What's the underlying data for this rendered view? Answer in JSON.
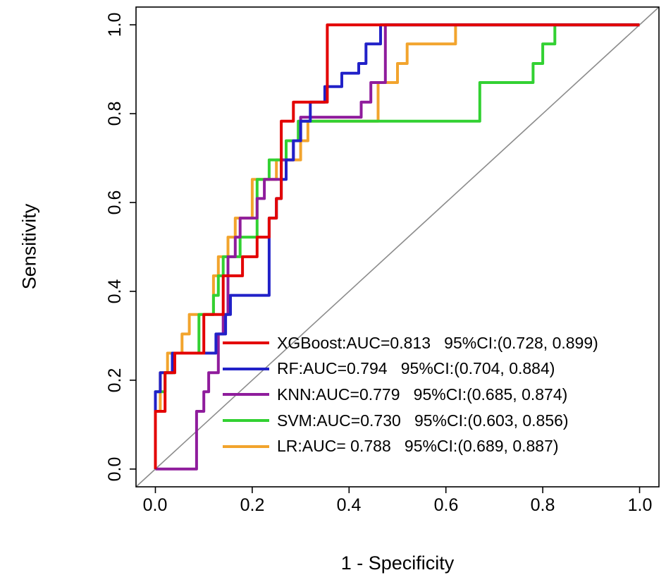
{
  "chart_data": {
    "type": "line",
    "subtype": "roc-curves",
    "title": "",
    "xlabel": "1 - Specificity",
    "ylabel": "Sensitivity",
    "xlim": [
      -0.04,
      1.04
    ],
    "ylim": [
      -0.04,
      1.04
    ],
    "ticks": [
      0,
      0.2,
      0.4,
      0.6,
      0.8,
      1.0
    ],
    "x_tick_labels": [
      "0.0",
      "0.2",
      "0.4",
      "0.6",
      "0.8",
      "1.0"
    ],
    "y_tick_labels": [
      "0.0",
      "0.2",
      "0.4",
      "0.6",
      "0.8",
      "1.0"
    ],
    "grid": false,
    "legend_position": "inside-lower-right",
    "reference_line": {
      "from": [
        0,
        0
      ],
      "to": [
        1,
        1
      ],
      "color": "#8c8c8c",
      "style": "solid"
    },
    "series": [
      {
        "name": "XGBoost",
        "auc": 0.813,
        "ci": "(0.728, 0.899)",
        "legend": "XGBoost:AUC=0.813   95%CI:(0.728, 0.899)",
        "color": "#e30000",
        "points": [
          [
            0,
            0
          ],
          [
            0,
            0.13
          ],
          [
            0.02,
            0.13
          ],
          [
            0.02,
            0.217
          ],
          [
            0.04,
            0.217
          ],
          [
            0.04,
            0.261
          ],
          [
            0.1,
            0.261
          ],
          [
            0.1,
            0.348
          ],
          [
            0.14,
            0.348
          ],
          [
            0.14,
            0.435
          ],
          [
            0.18,
            0.435
          ],
          [
            0.18,
            0.478
          ],
          [
            0.21,
            0.478
          ],
          [
            0.21,
            0.522
          ],
          [
            0.235,
            0.522
          ],
          [
            0.235,
            0.565
          ],
          [
            0.25,
            0.565
          ],
          [
            0.25,
            0.609
          ],
          [
            0.26,
            0.609
          ],
          [
            0.26,
            0.783
          ],
          [
            0.285,
            0.783
          ],
          [
            0.285,
            0.826
          ],
          [
            0.355,
            0.826
          ],
          [
            0.355,
            1.0
          ],
          [
            1.0,
            1.0
          ]
        ]
      },
      {
        "name": "RF",
        "auc": 0.794,
        "ci": "(0.704, 0.884)",
        "legend": "RF:AUC=0.794   95%CI:(0.704, 0.884)",
        "color": "#2121c8",
        "points": [
          [
            0,
            0
          ],
          [
            0,
            0.174
          ],
          [
            0.01,
            0.174
          ],
          [
            0.01,
            0.217
          ],
          [
            0.035,
            0.217
          ],
          [
            0.035,
            0.261
          ],
          [
            0.125,
            0.261
          ],
          [
            0.125,
            0.304
          ],
          [
            0.145,
            0.304
          ],
          [
            0.145,
            0.348
          ],
          [
            0.155,
            0.348
          ],
          [
            0.155,
            0.391
          ],
          [
            0.235,
            0.391
          ],
          [
            0.235,
            0.565
          ],
          [
            0.25,
            0.565
          ],
          [
            0.25,
            0.609
          ],
          [
            0.26,
            0.609
          ],
          [
            0.26,
            0.652
          ],
          [
            0.27,
            0.652
          ],
          [
            0.27,
            0.696
          ],
          [
            0.285,
            0.696
          ],
          [
            0.285,
            0.739
          ],
          [
            0.3,
            0.739
          ],
          [
            0.3,
            0.783
          ],
          [
            0.32,
            0.783
          ],
          [
            0.32,
            0.826
          ],
          [
            0.35,
            0.826
          ],
          [
            0.35,
            0.861
          ],
          [
            0.385,
            0.861
          ],
          [
            0.385,
            0.891
          ],
          [
            0.42,
            0.891
          ],
          [
            0.42,
            0.913
          ],
          [
            0.435,
            0.913
          ],
          [
            0.435,
            0.957
          ],
          [
            0.465,
            0.957
          ],
          [
            0.465,
            1.0
          ],
          [
            1.0,
            1.0
          ]
        ]
      },
      {
        "name": "KNN",
        "auc": 0.779,
        "ci": "(0.685, 0.874)",
        "legend": "KNN:AUC=0.779   95%CI:(0.685, 0.874)",
        "color": "#8f1c9c",
        "points": [
          [
            0,
            0
          ],
          [
            0.085,
            0
          ],
          [
            0.085,
            0.13
          ],
          [
            0.1,
            0.13
          ],
          [
            0.1,
            0.174
          ],
          [
            0.11,
            0.174
          ],
          [
            0.11,
            0.217
          ],
          [
            0.13,
            0.217
          ],
          [
            0.13,
            0.304
          ],
          [
            0.14,
            0.304
          ],
          [
            0.14,
            0.348
          ],
          [
            0.15,
            0.348
          ],
          [
            0.15,
            0.478
          ],
          [
            0.165,
            0.478
          ],
          [
            0.165,
            0.522
          ],
          [
            0.175,
            0.522
          ],
          [
            0.175,
            0.565
          ],
          [
            0.21,
            0.565
          ],
          [
            0.21,
            0.609
          ],
          [
            0.225,
            0.609
          ],
          [
            0.225,
            0.652
          ],
          [
            0.26,
            0.652
          ],
          [
            0.26,
            0.696
          ],
          [
            0.285,
            0.696
          ],
          [
            0.285,
            0.739
          ],
          [
            0.3,
            0.739
          ],
          [
            0.3,
            0.792
          ],
          [
            0.425,
            0.792
          ],
          [
            0.425,
            0.826
          ],
          [
            0.445,
            0.826
          ],
          [
            0.445,
            0.87
          ],
          [
            0.475,
            0.87
          ],
          [
            0.475,
            1.0
          ],
          [
            1.0,
            1.0
          ]
        ]
      },
      {
        "name": "SVM",
        "auc": 0.73,
        "ci": "(0.603, 0.856)",
        "legend": "SVM:AUC=0.730   95%CI:(0.603, 0.856)",
        "color": "#32d132",
        "points": [
          [
            0,
            0
          ],
          [
            0,
            0.174
          ],
          [
            0.02,
            0.174
          ],
          [
            0.02,
            0.217
          ],
          [
            0.04,
            0.217
          ],
          [
            0.04,
            0.261
          ],
          [
            0.09,
            0.261
          ],
          [
            0.09,
            0.348
          ],
          [
            0.12,
            0.348
          ],
          [
            0.12,
            0.391
          ],
          [
            0.13,
            0.391
          ],
          [
            0.13,
            0.435
          ],
          [
            0.14,
            0.435
          ],
          [
            0.14,
            0.478
          ],
          [
            0.175,
            0.478
          ],
          [
            0.175,
            0.522
          ],
          [
            0.21,
            0.522
          ],
          [
            0.21,
            0.652
          ],
          [
            0.235,
            0.652
          ],
          [
            0.235,
            0.696
          ],
          [
            0.27,
            0.696
          ],
          [
            0.27,
            0.739
          ],
          [
            0.295,
            0.739
          ],
          [
            0.295,
            0.783
          ],
          [
            0.67,
            0.783
          ],
          [
            0.67,
            0.87
          ],
          [
            0.78,
            0.87
          ],
          [
            0.78,
            0.913
          ],
          [
            0.8,
            0.913
          ],
          [
            0.8,
            0.957
          ],
          [
            0.825,
            0.957
          ],
          [
            0.825,
            1.0
          ],
          [
            1.0,
            1.0
          ]
        ]
      },
      {
        "name": "LR",
        "auc": 0.788,
        "ci": "(0.689, 0.887)",
        "legend": "LR:AUC= 0.788   95%CI:(0.689, 0.887)",
        "color": "#f2a42d",
        "points": [
          [
            0,
            0
          ],
          [
            0,
            0.13
          ],
          [
            0.01,
            0.13
          ],
          [
            0.01,
            0.217
          ],
          [
            0.025,
            0.217
          ],
          [
            0.025,
            0.261
          ],
          [
            0.055,
            0.261
          ],
          [
            0.055,
            0.304
          ],
          [
            0.07,
            0.304
          ],
          [
            0.07,
            0.348
          ],
          [
            0.12,
            0.348
          ],
          [
            0.12,
            0.435
          ],
          [
            0.13,
            0.435
          ],
          [
            0.13,
            0.478
          ],
          [
            0.15,
            0.478
          ],
          [
            0.15,
            0.522
          ],
          [
            0.165,
            0.522
          ],
          [
            0.165,
            0.565
          ],
          [
            0.2,
            0.565
          ],
          [
            0.2,
            0.652
          ],
          [
            0.25,
            0.652
          ],
          [
            0.25,
            0.696
          ],
          [
            0.3,
            0.696
          ],
          [
            0.3,
            0.739
          ],
          [
            0.315,
            0.739
          ],
          [
            0.315,
            0.783
          ],
          [
            0.46,
            0.783
          ],
          [
            0.46,
            0.87
          ],
          [
            0.5,
            0.87
          ],
          [
            0.5,
            0.913
          ],
          [
            0.52,
            0.913
          ],
          [
            0.52,
            0.957
          ],
          [
            0.62,
            0.957
          ],
          [
            0.62,
            1.0
          ],
          [
            1.0,
            1.0
          ]
        ]
      }
    ]
  }
}
